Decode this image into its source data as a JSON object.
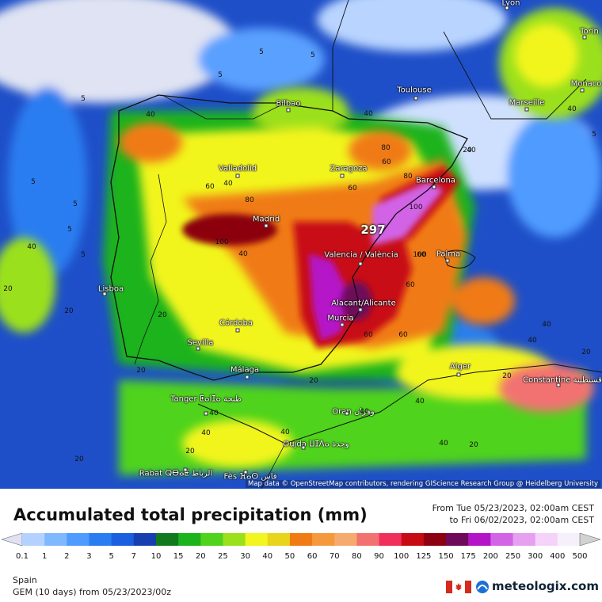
{
  "map": {
    "region": "Spain",
    "peak_value": "297",
    "attribution": "Map data © OpenStreetMap contributors, rendering GIScience Research Group @ Heidelberg University",
    "cities": [
      {
        "name": "Lyon"
      },
      {
        "name": "Torin"
      },
      {
        "name": "Monaco"
      },
      {
        "name": "Toulouse"
      },
      {
        "name": "Marseille"
      },
      {
        "name": "Bilbao"
      },
      {
        "name": "Valladolid"
      },
      {
        "name": "Zaragoza"
      },
      {
        "name": "Barcelona"
      },
      {
        "name": "Madrid"
      },
      {
        "name": "Valencia / València"
      },
      {
        "name": "Palma"
      },
      {
        "name": "Lisboa"
      },
      {
        "name": "Alacant/Alicante"
      },
      {
        "name": "Murcia"
      },
      {
        "name": "Córdoba"
      },
      {
        "name": "Sevilla"
      },
      {
        "name": "Málaga"
      },
      {
        "name": "Alger"
      },
      {
        "name": "Constantine قسنطينة"
      },
      {
        "name": "Tanger ⵟⴰⵏⵊⴰ طنجة"
      },
      {
        "name": "Oran وهران"
      },
      {
        "name": "Oujda ⵡⵊⴷⴰ وجدة"
      },
      {
        "name": "Rabat ⵕⴱⴰⵟ الرباط"
      },
      {
        "name": "Fès ⴼⴰⵙ فاس"
      }
    ],
    "value_labels": [
      "5",
      "5",
      "5",
      "5",
      "5",
      "5",
      "5",
      "5",
      "5",
      "40",
      "40",
      "40",
      "40",
      "40",
      "40",
      "40",
      "40",
      "60",
      "60",
      "60",
      "60",
      "60",
      "80",
      "80",
      "80",
      "100",
      "100",
      "100",
      "20",
      "20",
      "20",
      "20",
      "20",
      "20",
      "20",
      "20",
      "20",
      "20",
      "20",
      "40",
      "40",
      "40",
      "40",
      "60",
      "60",
      "40",
      "40",
      "40"
    ]
  },
  "legend": {
    "title": "Accumulated total precipitation (mm)",
    "period_from": "From Tue 05/23/2023, 02:00am CEST",
    "period_to": "to Fri 06/02/2023, 02:00am CEST",
    "ticks": [
      "0.1",
      "1",
      "2",
      "3",
      "5",
      "7",
      "10",
      "15",
      "20",
      "25",
      "30",
      "40",
      "50",
      "60",
      "70",
      "80",
      "90",
      "100",
      "125",
      "150",
      "175",
      "200",
      "250",
      "300",
      "400",
      "500"
    ],
    "colors": [
      "#e1e1f5",
      "#b4d2ff",
      "#7fb8ff",
      "#4f9bff",
      "#2a7df0",
      "#1a5fe0",
      "#173fb0",
      "#117a1e",
      "#1cb31c",
      "#4fd31c",
      "#9be01c",
      "#f2f51e",
      "#e8d41a",
      "#f07a14",
      "#f59a3c",
      "#f5ab6e",
      "#f27272",
      "#f0305a",
      "#c80a14",
      "#8c0010",
      "#6e0a5a",
      "#b414c8",
      "#d264e6",
      "#e6a0f0",
      "#f5d2fa",
      "#f5f0fa",
      "#d2d2d2"
    ],
    "region": "Spain",
    "model_info": "GEM (10 days) from 05/23/2023/00z",
    "brand": "meteologix.com"
  }
}
